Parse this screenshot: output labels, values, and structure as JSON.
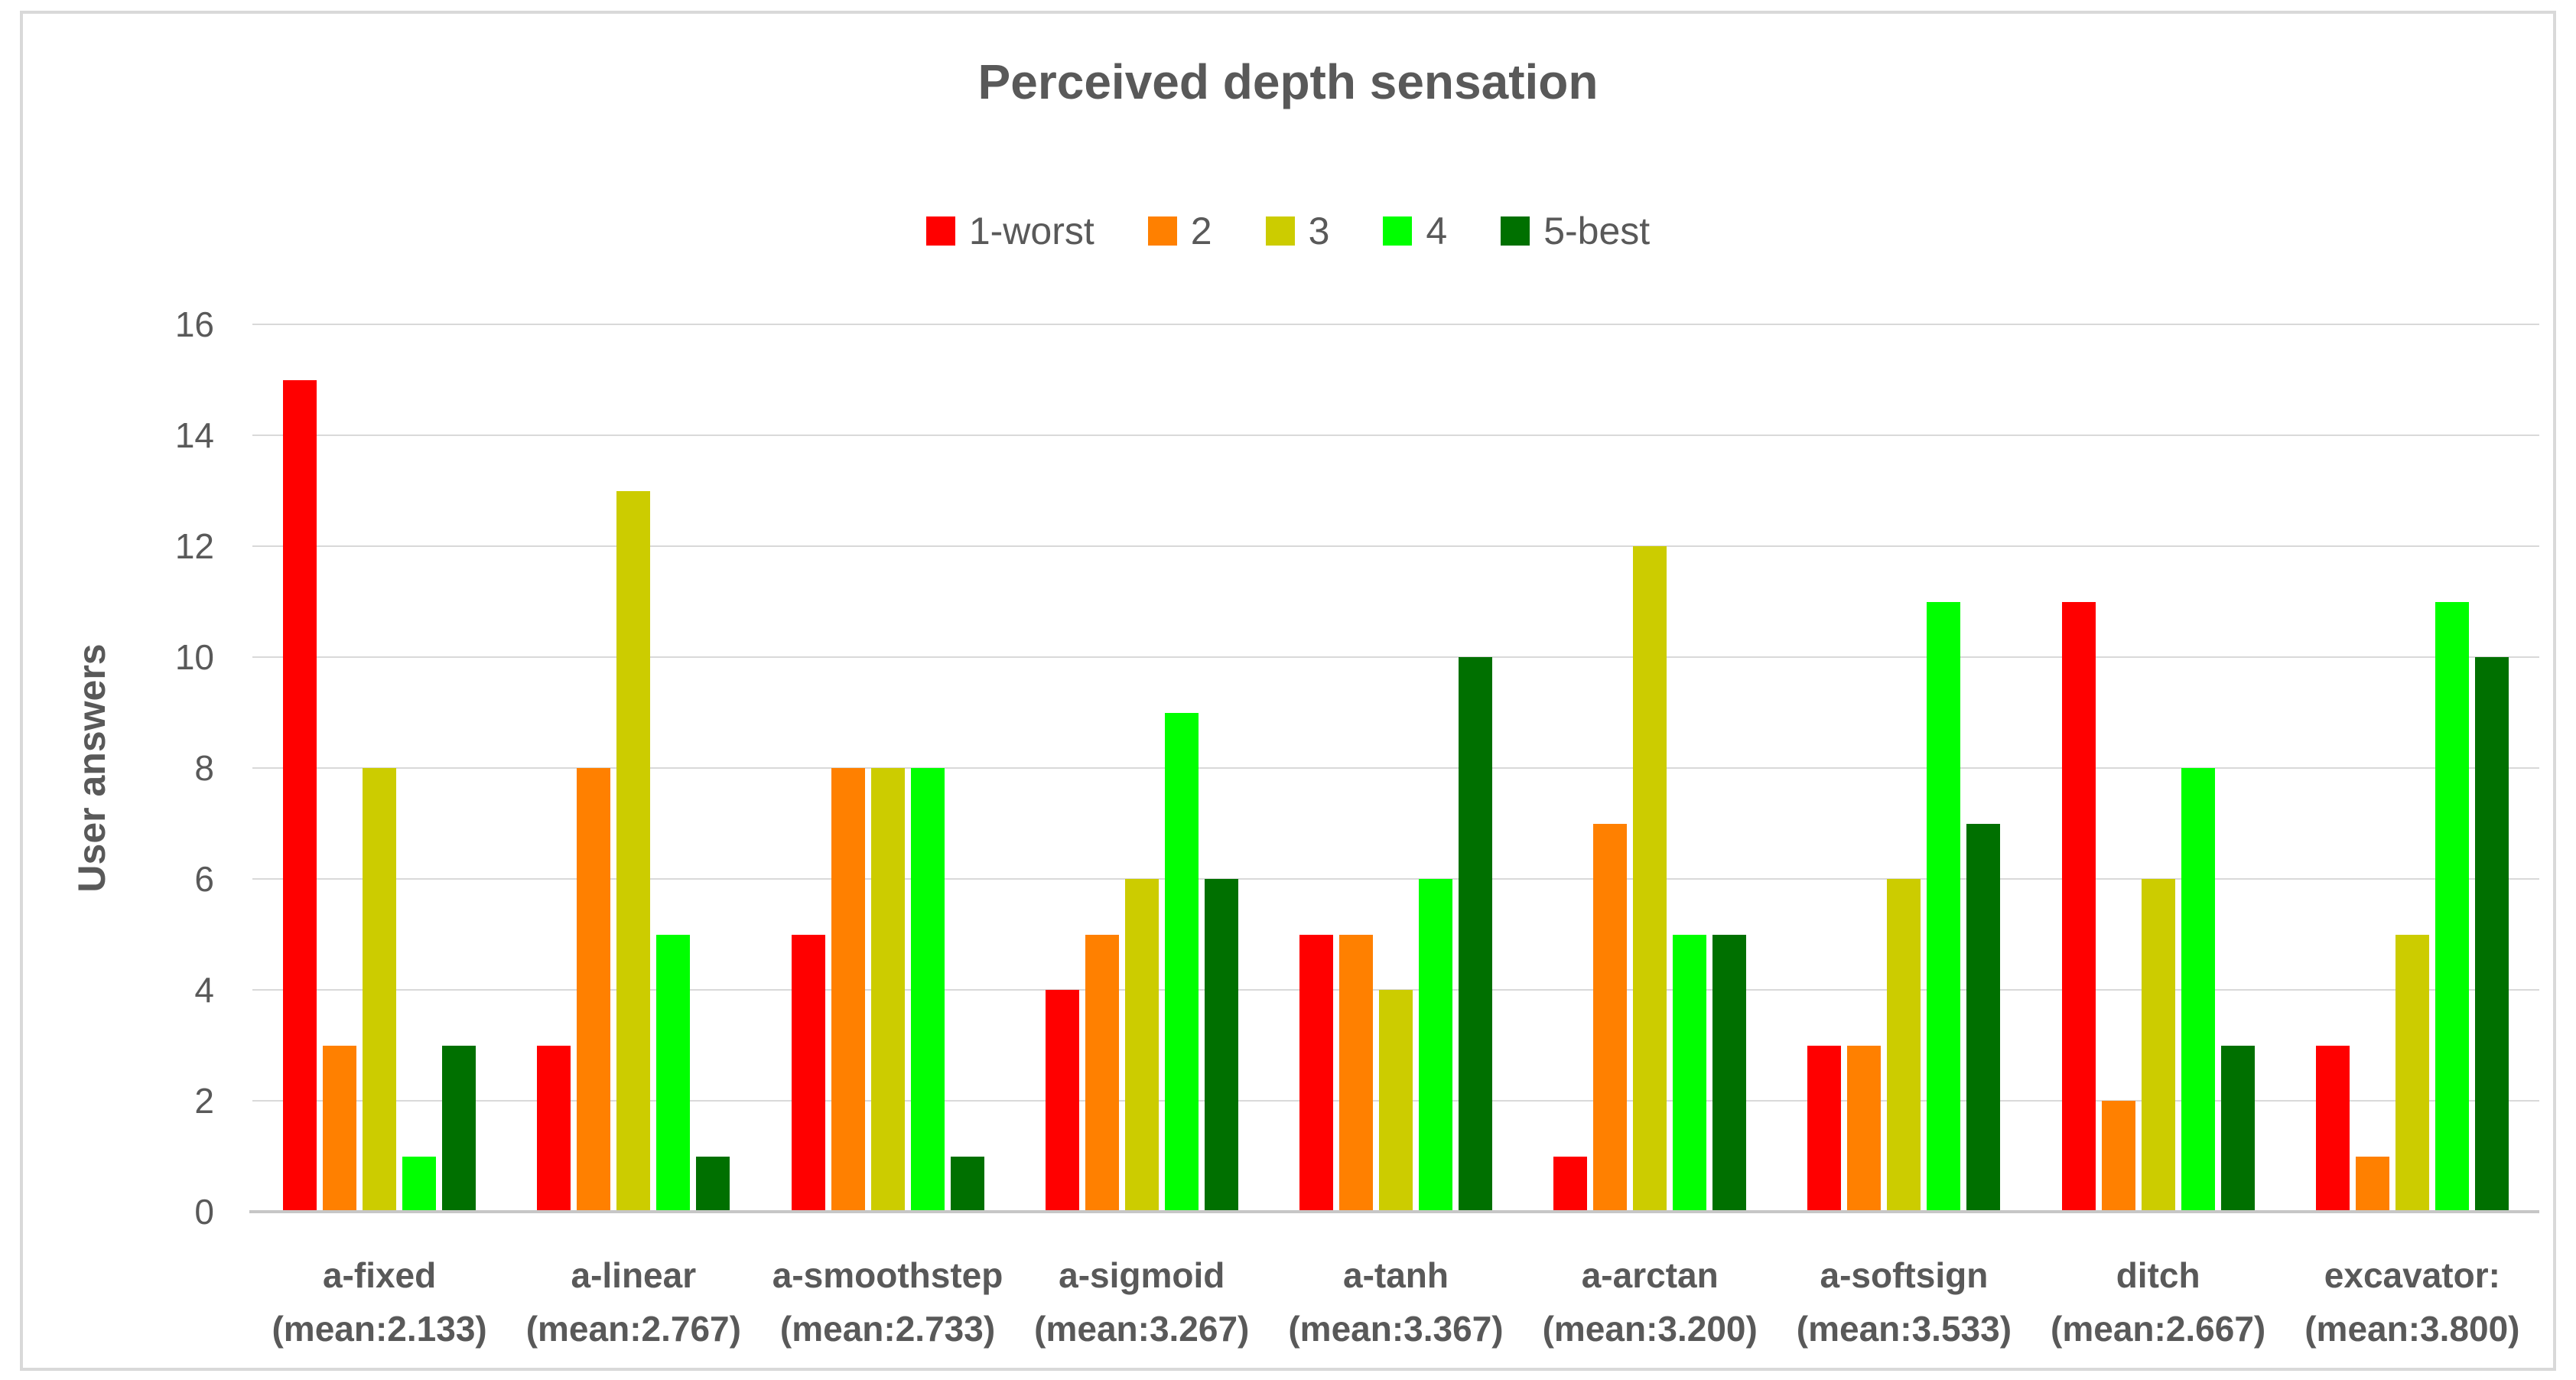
{
  "frame": {
    "border_color": "#D9D9D9"
  },
  "colors": {
    "text": "#595959",
    "gridline": "#D9D9D9",
    "axis_line": "#C6C6C6"
  },
  "chart_data": {
    "type": "bar",
    "title": "Perceived depth sensation",
    "ylabel": "User answers",
    "xlabel": "",
    "ylim": [
      0,
      16
    ],
    "ytick_step": 2,
    "grid": true,
    "legend_position": "top-center",
    "categories": [
      "a-fixed",
      "a-linear",
      "a-smoothstep",
      "a-sigmoid",
      "a-tanh",
      "a-arctan",
      "a-softsign",
      "ditch",
      "excavator:"
    ],
    "category_sublabels": [
      "(mean:2.133)",
      "(mean:2.767)",
      "(mean:2.733)",
      "(mean:3.267)",
      "(mean:3.367)",
      "(mean:3.200)",
      "(mean:3.533)",
      "(mean:2.667)",
      "(mean:3.800)"
    ],
    "series": [
      {
        "name": "1-worst",
        "color": "#FF0000",
        "values": [
          15,
          3,
          5,
          4,
          5,
          1,
          3,
          11,
          3
        ]
      },
      {
        "name": "2",
        "color": "#FF8000",
        "values": [
          3,
          8,
          8,
          5,
          5,
          7,
          3,
          2,
          1
        ]
      },
      {
        "name": "3",
        "color": "#CCCC00",
        "values": [
          8,
          13,
          8,
          6,
          4,
          12,
          6,
          6,
          5
        ]
      },
      {
        "name": "4",
        "color": "#00FF00",
        "values": [
          1,
          5,
          8,
          9,
          6,
          5,
          11,
          8,
          11
        ]
      },
      {
        "name": "5-best",
        "color": "#007000",
        "values": [
          3,
          1,
          1,
          6,
          10,
          5,
          7,
          3,
          10
        ]
      }
    ]
  }
}
